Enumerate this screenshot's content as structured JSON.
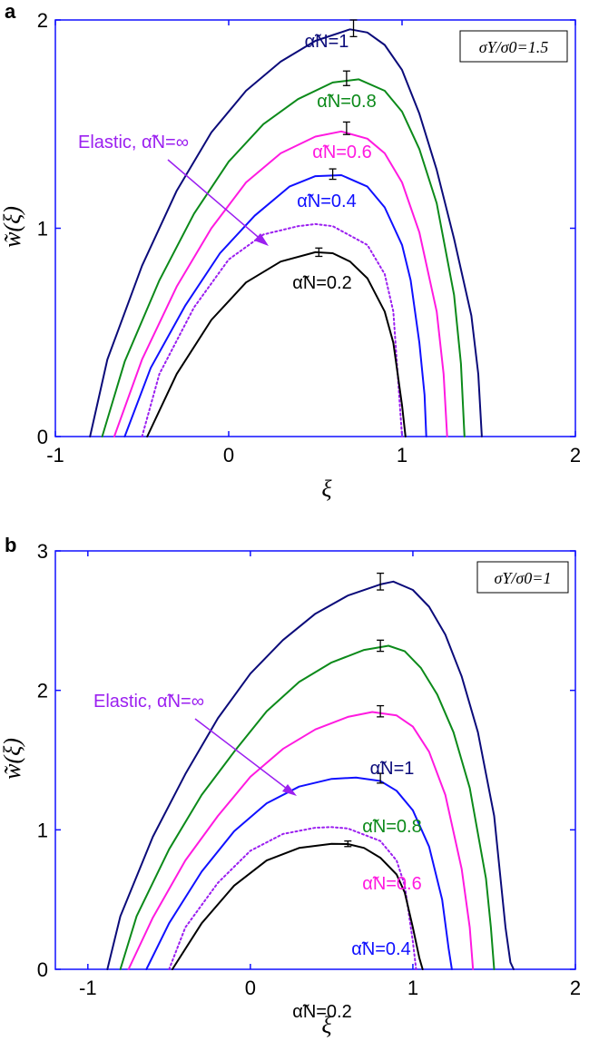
{
  "chart_data": [
    {
      "panel_label": "a",
      "type": "line",
      "xlabel": "ξ",
      "ylabel": "w̃(ξ)",
      "xlim": [
        -1,
        2
      ],
      "ylim": [
        0,
        2
      ],
      "x_ticks": [
        "-1",
        "0",
        "1",
        "2"
      ],
      "y_ticks": [
        "0",
        "1",
        "2"
      ],
      "annotation_box": "σY/σ0=1.5",
      "elastic_label": "Elastic, α̃N=∞",
      "series": [
        {
          "label": "α̃N=1",
          "color": "#0b0b7a",
          "style": "solid",
          "points": [
            [
              -0.8,
              0
            ],
            [
              -0.7,
              0.37
            ],
            [
              -0.5,
              0.82
            ],
            [
              -0.3,
              1.18
            ],
            [
              -0.1,
              1.46
            ],
            [
              0.1,
              1.66
            ],
            [
              0.3,
              1.8
            ],
            [
              0.5,
              1.9
            ],
            [
              0.7,
              1.955
            ],
            [
              0.8,
              1.94
            ],
            [
              0.9,
              1.88
            ],
            [
              1.0,
              1.76
            ],
            [
              1.1,
              1.55
            ],
            [
              1.2,
              1.28
            ],
            [
              1.3,
              0.95
            ],
            [
              1.4,
              0.58
            ],
            [
              1.44,
              0.3
            ],
            [
              1.46,
              0
            ]
          ],
          "error": {
            "x": 0.72,
            "y": 1.96,
            "err": 0.04
          }
        },
        {
          "label": "α̃N=0.8",
          "color": "#0c8a1a",
          "style": "solid",
          "points": [
            [
              -0.73,
              0
            ],
            [
              -0.6,
              0.36
            ],
            [
              -0.4,
              0.75
            ],
            [
              -0.2,
              1.07
            ],
            [
              0,
              1.32
            ],
            [
              0.2,
              1.5
            ],
            [
              0.4,
              1.62
            ],
            [
              0.6,
              1.7
            ],
            [
              0.75,
              1.715
            ],
            [
              0.9,
              1.66
            ],
            [
              1.0,
              1.56
            ],
            [
              1.1,
              1.38
            ],
            [
              1.2,
              1.12
            ],
            [
              1.3,
              0.68
            ],
            [
              1.34,
              0.35
            ],
            [
              1.36,
              0
            ]
          ],
          "error": {
            "x": 0.68,
            "y": 1.72,
            "err": 0.035
          }
        },
        {
          "label": "α̃N=0.6",
          "color": "#ff1ae0",
          "style": "solid",
          "points": [
            [
              -0.66,
              0
            ],
            [
              -0.5,
              0.37
            ],
            [
              -0.3,
              0.72
            ],
            [
              -0.1,
              1.0
            ],
            [
              0.1,
              1.22
            ],
            [
              0.3,
              1.36
            ],
            [
              0.5,
              1.44
            ],
            [
              0.65,
              1.465
            ],
            [
              0.8,
              1.43
            ],
            [
              0.9,
              1.36
            ],
            [
              1.0,
              1.22
            ],
            [
              1.1,
              0.98
            ],
            [
              1.2,
              0.6
            ],
            [
              1.24,
              0.3
            ],
            [
              1.26,
              0
            ]
          ],
          "error": {
            "x": 0.68,
            "y": 1.48,
            "err": 0.03
          }
        },
        {
          "label": "α̃N=0.4",
          "color": "#1010ff",
          "style": "solid",
          "points": [
            [
              -0.6,
              0
            ],
            [
              -0.45,
              0.33
            ],
            [
              -0.25,
              0.63
            ],
            [
              -0.05,
              0.88
            ],
            [
              0.15,
              1.06
            ],
            [
              0.35,
              1.2
            ],
            [
              0.5,
              1.25
            ],
            [
              0.65,
              1.255
            ],
            [
              0.8,
              1.2
            ],
            [
              0.9,
              1.1
            ],
            [
              1.0,
              0.92
            ],
            [
              1.05,
              0.75
            ],
            [
              1.1,
              0.45
            ],
            [
              1.13,
              0.2
            ],
            [
              1.14,
              0
            ]
          ],
          "error": {
            "x": 0.6,
            "y": 1.26,
            "err": 0.025
          }
        },
        {
          "label": "Elastic",
          "color": "#9b1ff0",
          "style": "dotted",
          "points": [
            [
              -0.5,
              0
            ],
            [
              -0.4,
              0.3
            ],
            [
              -0.2,
              0.62
            ],
            [
              0,
              0.85
            ],
            [
              0.2,
              0.97
            ],
            [
              0.4,
              1.01
            ],
            [
              0.5,
              1.02
            ],
            [
              0.6,
              1.01
            ],
            [
              0.8,
              0.92
            ],
            [
              0.9,
              0.78
            ],
            [
              0.95,
              0.6
            ],
            [
              1.0,
              0
            ]
          ]
        },
        {
          "label": "α̃N=0.2",
          "color": "#000000",
          "style": "solid",
          "points": [
            [
              -0.47,
              0
            ],
            [
              -0.3,
              0.3
            ],
            [
              -0.1,
              0.56
            ],
            [
              0.1,
              0.74
            ],
            [
              0.3,
              0.84
            ],
            [
              0.5,
              0.885
            ],
            [
              0.6,
              0.88
            ],
            [
              0.7,
              0.84
            ],
            [
              0.8,
              0.76
            ],
            [
              0.9,
              0.6
            ],
            [
              0.95,
              0.45
            ],
            [
              1.0,
              0.15
            ],
            [
              1.02,
              0
            ]
          ],
          "error": {
            "x": 0.52,
            "y": 0.885,
            "err": 0.02
          }
        }
      ]
    },
    {
      "panel_label": "b",
      "type": "line",
      "xlabel": "ξ",
      "ylabel": "w̃(ξ)",
      "xlim": [
        -1.2,
        2
      ],
      "ylim": [
        0,
        3
      ],
      "x_ticks": [
        "-1",
        "0",
        "1",
        "2"
      ],
      "y_ticks": [
        "0",
        "1",
        "2",
        "3"
      ],
      "annotation_box": "σY/σ0=1",
      "elastic_label": "Elastic, α̃N=∞",
      "series": [
        {
          "label": "α̃N=1",
          "color": "#0b0b7a",
          "style": "solid",
          "points": [
            [
              -0.88,
              0
            ],
            [
              -0.8,
              0.38
            ],
            [
              -0.6,
              0.95
            ],
            [
              -0.4,
              1.4
            ],
            [
              -0.2,
              1.8
            ],
            [
              0,
              2.12
            ],
            [
              0.2,
              2.36
            ],
            [
              0.4,
              2.55
            ],
            [
              0.6,
              2.68
            ],
            [
              0.8,
              2.76
            ],
            [
              0.88,
              2.78
            ],
            [
              1.0,
              2.72
            ],
            [
              1.1,
              2.6
            ],
            [
              1.2,
              2.4
            ],
            [
              1.3,
              2.1
            ],
            [
              1.4,
              1.7
            ],
            [
              1.5,
              1.1
            ],
            [
              1.57,
              0.3
            ],
            [
              1.6,
              0.05
            ],
            [
              1.62,
              0
            ]
          ],
          "error": {
            "x": 0.8,
            "y": 2.78,
            "err": 0.06
          }
        },
        {
          "label": "α̃N=0.8",
          "color": "#0c8a1a",
          "style": "solid",
          "points": [
            [
              -0.8,
              0
            ],
            [
              -0.7,
              0.38
            ],
            [
              -0.5,
              0.86
            ],
            [
              -0.3,
              1.25
            ],
            [
              -0.1,
              1.56
            ],
            [
              0.1,
              1.85
            ],
            [
              0.3,
              2.06
            ],
            [
              0.5,
              2.2
            ],
            [
              0.7,
              2.29
            ],
            [
              0.85,
              2.32
            ],
            [
              0.95,
              2.28
            ],
            [
              1.05,
              2.16
            ],
            [
              1.15,
              1.97
            ],
            [
              1.25,
              1.7
            ],
            [
              1.35,
              1.3
            ],
            [
              1.45,
              0.65
            ],
            [
              1.48,
              0.3
            ],
            [
              1.5,
              0
            ]
          ],
          "error": {
            "x": 0.8,
            "y": 2.32,
            "err": 0.04
          }
        },
        {
          "label": "α̃N=0.6",
          "color": "#ff1ae0",
          "style": "solid",
          "points": [
            [
              -0.75,
              0
            ],
            [
              -0.6,
              0.37
            ],
            [
              -0.4,
              0.78
            ],
            [
              -0.2,
              1.1
            ],
            [
              0,
              1.38
            ],
            [
              0.2,
              1.58
            ],
            [
              0.4,
              1.72
            ],
            [
              0.6,
              1.81
            ],
            [
              0.75,
              1.845
            ],
            [
              0.9,
              1.82
            ],
            [
              1.0,
              1.74
            ],
            [
              1.1,
              1.56
            ],
            [
              1.2,
              1.25
            ],
            [
              1.3,
              0.72
            ],
            [
              1.35,
              0.3
            ],
            [
              1.37,
              0
            ]
          ],
          "error": {
            "x": 0.8,
            "y": 1.85,
            "err": 0.04
          }
        },
        {
          "label": "α̃N=0.4",
          "color": "#1010ff",
          "style": "solid",
          "points": [
            [
              -0.64,
              0
            ],
            [
              -0.5,
              0.33
            ],
            [
              -0.3,
              0.7
            ],
            [
              -0.1,
              0.99
            ],
            [
              0.1,
              1.19
            ],
            [
              0.3,
              1.31
            ],
            [
              0.5,
              1.365
            ],
            [
              0.65,
              1.375
            ],
            [
              0.8,
              1.35
            ],
            [
              0.9,
              1.28
            ],
            [
              1.0,
              1.14
            ],
            [
              1.1,
              0.88
            ],
            [
              1.18,
              0.5
            ],
            [
              1.22,
              0.15
            ],
            [
              1.24,
              0
            ]
          ],
          "error": {
            "x": 0.8,
            "y": 1.37,
            "err": 0.035
          }
        },
        {
          "label": "Elastic",
          "color": "#9b1ff0",
          "style": "dotted",
          "points": [
            [
              -0.5,
              0
            ],
            [
              -0.4,
              0.3
            ],
            [
              -0.2,
              0.62
            ],
            [
              0,
              0.85
            ],
            [
              0.2,
              0.97
            ],
            [
              0.4,
              1.015
            ],
            [
              0.5,
              1.02
            ],
            [
              0.6,
              1.01
            ],
            [
              0.8,
              0.92
            ],
            [
              0.9,
              0.78
            ],
            [
              0.95,
              0.6
            ],
            [
              1.0,
              0.2
            ],
            [
              1.02,
              0
            ]
          ]
        },
        {
          "label": "α̃N=0.2",
          "color": "#000000",
          "style": "solid",
          "points": [
            [
              -0.48,
              0
            ],
            [
              -0.3,
              0.33
            ],
            [
              -0.1,
              0.6
            ],
            [
              0.1,
              0.78
            ],
            [
              0.3,
              0.87
            ],
            [
              0.5,
              0.9
            ],
            [
              0.6,
              0.898
            ],
            [
              0.7,
              0.87
            ],
            [
              0.8,
              0.8
            ],
            [
              0.9,
              0.68
            ],
            [
              0.95,
              0.55
            ],
            [
              1.0,
              0.3
            ],
            [
              1.04,
              0.08
            ],
            [
              1.06,
              0
            ]
          ],
          "error": {
            "x": 0.6,
            "y": 0.9,
            "err": 0.02
          }
        }
      ]
    }
  ]
}
